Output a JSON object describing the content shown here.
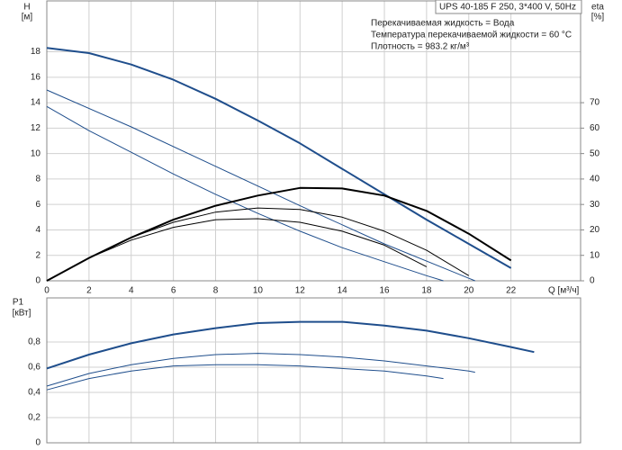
{
  "chart_data": [
    {
      "type": "line",
      "title": "UPS 40-185 F 250, 3*400 V, 50Hz",
      "annotations": [
        "Перекачиваемая жидкость = Вода",
        "Температура перекачиваемой жидкости = 60 °C",
        "Плотность = 983.2 кг/м³"
      ],
      "y_label": "H",
      "y_unit": "[м]",
      "y2_label": "eta",
      "y2_unit": "[%]",
      "x_label": "Q [м³/ч]",
      "xlim": [
        0,
        25.3
      ],
      "xticks": [
        0,
        2,
        4,
        6,
        8,
        10,
        12,
        14,
        16,
        18,
        20,
        22
      ],
      "ylim": [
        0,
        22
      ],
      "yticks": [
        0,
        2,
        4,
        6,
        8,
        10,
        12,
        14,
        16,
        18
      ],
      "y2lim": [
        0,
        110
      ],
      "y2ticks": [
        0,
        10,
        20,
        30,
        40,
        50,
        60,
        70
      ],
      "grid": true,
      "series": [
        {
          "color": "#1f4e8c",
          "width": 2,
          "x": [
            0,
            2,
            4,
            6,
            8,
            10,
            12,
            14,
            16,
            18,
            20,
            22
          ],
          "values": [
            18.3,
            17.9,
            17.0,
            15.8,
            14.3,
            12.6,
            10.8,
            8.8,
            6.8,
            4.8,
            2.9,
            1.0
          ]
        },
        {
          "color": "#1f4e8c",
          "width": 1,
          "x": [
            0,
            4,
            8,
            12,
            16,
            20,
            20.3
          ],
          "values": [
            15.0,
            12.1,
            9.0,
            5.9,
            2.9,
            0.2,
            0
          ]
        },
        {
          "color": "#1f4e8c",
          "width": 1,
          "x": [
            0,
            2,
            4,
            6,
            8,
            10,
            12,
            14,
            16,
            18,
            18.8
          ],
          "values": [
            13.7,
            11.8,
            10.1,
            8.4,
            6.8,
            5.3,
            3.9,
            2.6,
            1.5,
            0.4,
            0
          ]
        },
        {
          "color": "#000000",
          "width": 2,
          "axis": "y2",
          "x": [
            0,
            2,
            4,
            6,
            8,
            10,
            12,
            14,
            16,
            18,
            20,
            22
          ],
          "values": [
            0,
            9,
            17,
            24,
            29.5,
            33.5,
            36.5,
            36.3,
            33.5,
            27.5,
            18.5,
            8
          ]
        },
        {
          "color": "#000000",
          "width": 1,
          "axis": "y2",
          "x": [
            0,
            2,
            4,
            6,
            8,
            10,
            12,
            14,
            16,
            18,
            20
          ],
          "values": [
            0,
            9,
            17,
            23,
            27,
            28.6,
            28,
            25,
            19.5,
            12,
            2
          ]
        },
        {
          "color": "#000000",
          "width": 1,
          "axis": "y2",
          "x": [
            0,
            2,
            4,
            6,
            8,
            10,
            12,
            14,
            16,
            18
          ],
          "values": [
            0,
            9,
            16,
            21,
            24,
            24.4,
            23,
            19.5,
            14,
            5.5
          ]
        }
      ]
    },
    {
      "type": "line",
      "y_label": "P1",
      "y_unit": "[кВт]",
      "xlim": [
        0,
        25.3
      ],
      "ylim": [
        0,
        1.15
      ],
      "yticks": [
        0,
        {
          "value": 0.2,
          "label": "0,2"
        },
        {
          "value": 0.4,
          "label": "0,4"
        },
        {
          "value": 0.6,
          "label": "0,6"
        },
        {
          "value": 0.8,
          "label": "0,8"
        }
      ],
      "grid": true,
      "series": [
        {
          "color": "#1f4e8c",
          "width": 2,
          "x": [
            0,
            2,
            4,
            6,
            8,
            10,
            12,
            14,
            16,
            18,
            20,
            22,
            23.1
          ],
          "values": [
            0.59,
            0.7,
            0.79,
            0.86,
            0.91,
            0.95,
            0.96,
            0.96,
            0.93,
            0.89,
            0.83,
            0.76,
            0.72
          ]
        },
        {
          "color": "#1f4e8c",
          "width": 1,
          "x": [
            0,
            2,
            4,
            6,
            8,
            10,
            12,
            14,
            16,
            18,
            20,
            20.3
          ],
          "values": [
            0.45,
            0.55,
            0.62,
            0.67,
            0.7,
            0.71,
            0.7,
            0.68,
            0.65,
            0.61,
            0.57,
            0.56
          ]
        },
        {
          "color": "#1f4e8c",
          "width": 1,
          "x": [
            0,
            2,
            4,
            6,
            8,
            10,
            12,
            14,
            16,
            18,
            18.8
          ],
          "values": [
            0.42,
            0.51,
            0.57,
            0.61,
            0.62,
            0.62,
            0.61,
            0.59,
            0.57,
            0.53,
            0.51
          ]
        }
      ]
    }
  ]
}
